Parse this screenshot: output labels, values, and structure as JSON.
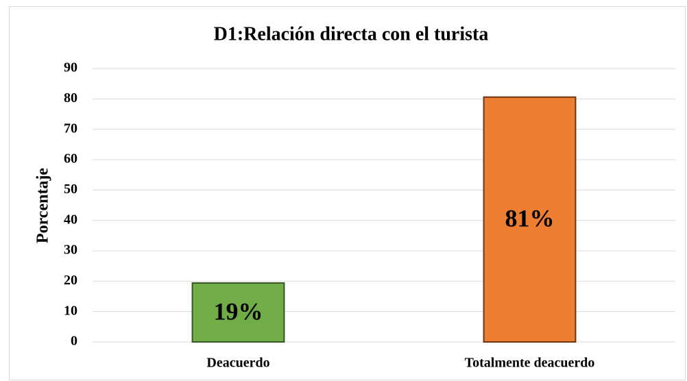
{
  "chart_data": {
    "type": "bar",
    "title": "D1:Relación directa con el turista",
    "ylabel": "Porcentaje",
    "categories": [
      "Deacuerdo",
      "Totalmente deacuerdo"
    ],
    "values": [
      19.4,
      80.6
    ],
    "value_labels": [
      "19%",
      "81%"
    ],
    "colors": [
      "#70ad47",
      "#ed7d31"
    ],
    "edge_colors": [
      "#385723",
      "#6b3412"
    ],
    "ylim": [
      0,
      90
    ],
    "yticks": [
      0,
      10,
      20,
      30,
      40,
      50,
      60,
      70,
      80,
      90
    ],
    "grid": true
  }
}
